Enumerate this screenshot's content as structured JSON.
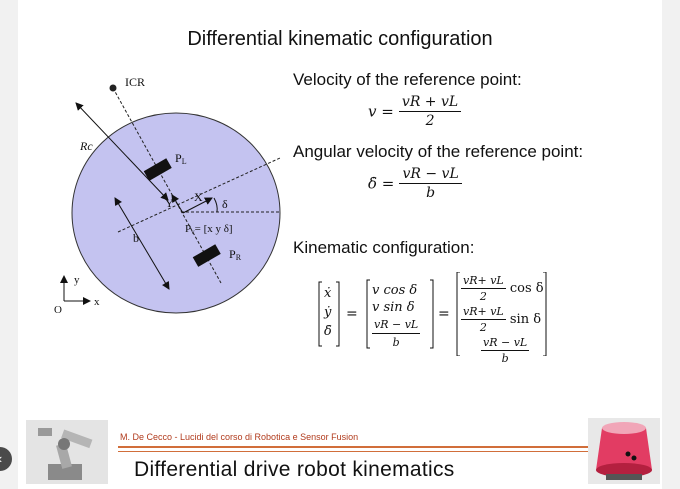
{
  "slide": {
    "title": "Differential kinematic configuration",
    "labels": {
      "icr": "ICR",
      "rc": "Rc",
      "pl": "P",
      "pl_sub": "L",
      "pr": "P",
      "pr_sub": "R",
      "x_axis": "X",
      "y_axis": "Y",
      "delta": "δ",
      "pv": "P",
      "pv_sub": "v",
      "pv_rest": "= [x y δ]",
      "b": "b",
      "frame_x": "x",
      "frame_y": "y",
      "frame_o": "O"
    },
    "velocity_heading": "Velocity of the reference point:",
    "angular_heading": "Angular velocity of the reference point:",
    "kinematic_heading": "Kinematic configuration:",
    "eq_v": {
      "lhs": "v =",
      "num": "vR + vL",
      "den": "2"
    },
    "eq_delta": {
      "lhs": "δ̇ =",
      "num": "vR − vL",
      "den": "b"
    },
    "matrix": {
      "state": [
        "ẋ",
        "ẏ",
        "δ̇"
      ],
      "middle": [
        "v cos δ",
        "v sin δ"
      ],
      "middle_frac": {
        "num": "vR − vL",
        "den": "b"
      },
      "right_frac1": {
        "num": "vR+ vL",
        "den": "2",
        "trail": "cos δ"
      },
      "right_frac2": {
        "num": "vR+ vL",
        "den": "2",
        "trail": "sin δ"
      },
      "right_frac3": {
        "num": "vR − vL",
        "den": "b"
      },
      "equals": "="
    }
  },
  "footer": {
    "credit": "M. De Cecco - Lucidi del corso di Robotica e Sensor Fusion",
    "title": "Differential drive robot kinematics"
  },
  "colors": {
    "disk": "#c4c3f0",
    "accent_line": "#d16e3a",
    "credit_text": "#b13b1d"
  },
  "icons": {
    "left_image": "robot-arm-photo",
    "right_image": "red-differential-drive-robot-photo",
    "nav": "chevron-left-icon"
  }
}
